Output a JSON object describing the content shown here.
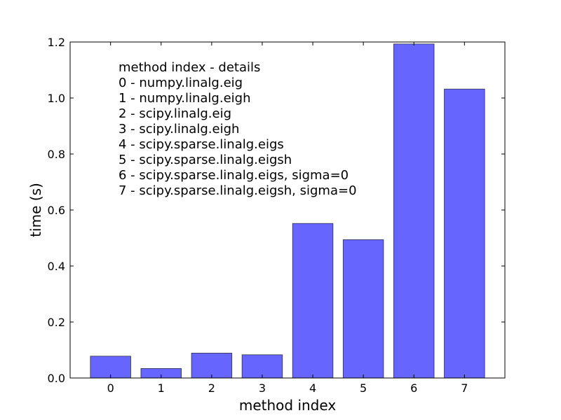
{
  "chart_data": {
    "type": "bar",
    "categories": [
      "0",
      "1",
      "2",
      "3",
      "4",
      "5",
      "6",
      "7"
    ],
    "values": [
      0.078,
      0.034,
      0.089,
      0.083,
      0.552,
      0.494,
      1.193,
      1.032
    ],
    "xlabel": "method index",
    "ylabel": "time (s)",
    "ylim": [
      0,
      1.2
    ],
    "xlim": [
      -0.8,
      7.8
    ],
    "yticks": [
      "0.0",
      "0.2",
      "0.4",
      "0.6",
      "0.8",
      "1.0",
      "1.2"
    ],
    "grid": false,
    "bar_color": "#6666ff",
    "annotation": [
      "method index - details",
      "0 - numpy.linalg.eig",
      "1 - numpy.linalg.eigh",
      "2 - scipy.linalg.eig",
      "3 - scipy.linalg.eigh",
      "4 - scipy.sparse.linalg.eigs",
      "5 - scipy.sparse.linalg.eigsh",
      "6 - scipy.sparse.linalg.eigs, sigma=0",
      "7 - scipy.sparse.linalg.eigsh, sigma=0"
    ]
  }
}
